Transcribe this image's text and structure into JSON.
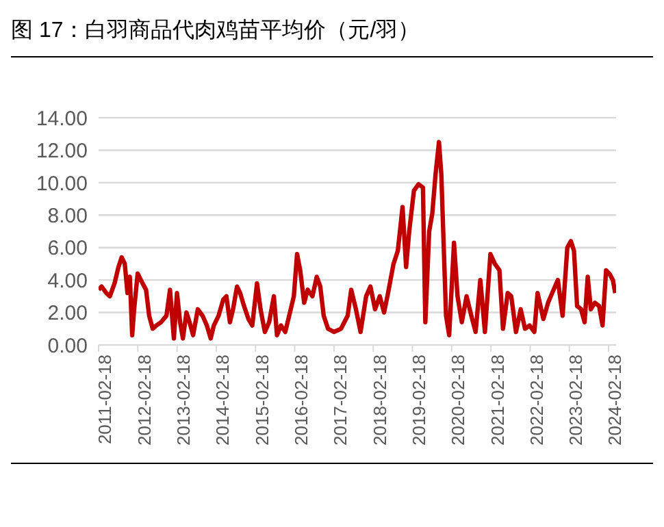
{
  "chart_data": {
    "type": "line",
    "title": "图 17：白羽商品代肉鸡苗平均价（元/羽）",
    "x": [
      "2011-02-18",
      "2011-03-18",
      "2011-05-01",
      "2011-06-03",
      "2011-07-17",
      "2011-08-22",
      "2011-09-21",
      "2011-10-20",
      "2011-11-14",
      "2011-12-06",
      "2011-12-28",
      "2012-01-15",
      "2012-02-17",
      "2012-04-02",
      "2012-05-05",
      "2012-06-03",
      "2012-07-06",
      "2012-08-08",
      "2012-09-21",
      "2012-11-11",
      "2012-12-14",
      "2013-01-19",
      "2013-02-17",
      "2013-03-18",
      "2013-04-13",
      "2013-05-16",
      "2013-06-14",
      "2013-07-17",
      "2013-08-30",
      "2013-10-13",
      "2013-11-22",
      "2013-12-28",
      "2014-01-26",
      "2014-03-11",
      "2014-04-24",
      "2014-05-23",
      "2014-06-25",
      "2014-07-24",
      "2014-08-30",
      "2014-09-28",
      "2014-11-03",
      "2014-12-14",
      "2015-01-19",
      "2015-03-04",
      "2015-04-06",
      "2015-05-16",
      "2015-06-25",
      "2015-08-08",
      "2015-09-06",
      "2015-10-13",
      "2015-11-22",
      "2016-01-05",
      "2016-02-10",
      "2016-03-11",
      "2016-04-09",
      "2016-05-16",
      "2016-06-18",
      "2016-08-01",
      "2016-09-10",
      "2016-10-13",
      "2016-11-14",
      "2016-12-24",
      "2017-02-17",
      "2017-04-24",
      "2017-06-25",
      "2017-07-28",
      "2017-09-10",
      "2017-10-23",
      "2017-12-14",
      "2018-01-23",
      "2018-03-07",
      "2018-04-20",
      "2018-05-30",
      "2018-07-06",
      "2018-08-26",
      "2018-10-05",
      "2018-11-18",
      "2018-12-21",
      "2019-01-19",
      "2019-03-04",
      "2019-04-16",
      "2019-05-27",
      "2019-06-18",
      "2019-07-24",
      "2019-08-22",
      "2019-09-21",
      "2019-10-23",
      "2019-11-14",
      "2019-12-28",
      "2020-01-26",
      "2020-03-11",
      "2020-04-13",
      "2020-05-23",
      "2020-07-06",
      "2020-08-19",
      "2020-09-28",
      "2020-11-11",
      "2020-12-24",
      "2021-02-13",
      "2021-03-26",
      "2021-05-08",
      "2021-06-10",
      "2021-07-24",
      "2021-08-26",
      "2021-10-09",
      "2021-11-22",
      "2022-01-01",
      "2022-02-13",
      "2022-03-29",
      "2022-04-28",
      "2022-06-21",
      "2022-08-04",
      "2022-09-24",
      "2022-11-03",
      "2022-12-17",
      "2023-01-30",
      "2023-03-04",
      "2023-04-02",
      "2023-05-01",
      "2023-06-07",
      "2023-07-10",
      "2023-08-08",
      "2023-09-06",
      "2023-10-13",
      "2023-11-22",
      "2023-12-24",
      "2024-01-26",
      "2024-02-25",
      "2024-03-29",
      "2024-04-20"
    ],
    "series": [
      {
        "color": "#c00000",
        "values": [
          3.4,
          3.6,
          3.2,
          3.0,
          3.8,
          4.8,
          5.4,
          5.0,
          3.2,
          4.2,
          0.6,
          2.2,
          4.4,
          3.8,
          3.4,
          1.8,
          1.0,
          1.2,
          1.4,
          1.8,
          3.4,
          0.4,
          3.2,
          1.4,
          0.4,
          2.0,
          1.4,
          0.6,
          2.2,
          1.8,
          1.2,
          0.4,
          1.2,
          1.8,
          2.8,
          3.0,
          1.4,
          2.2,
          3.6,
          3.2,
          2.4,
          1.6,
          1.2,
          3.8,
          2.2,
          0.8,
          1.4,
          3.0,
          0.6,
          1.2,
          0.8,
          2.0,
          3.0,
          5.6,
          4.6,
          2.6,
          3.4,
          3.0,
          4.2,
          3.6,
          1.8,
          1.0,
          0.8,
          1.0,
          1.8,
          3.4,
          2.2,
          0.8,
          3.0,
          3.6,
          2.2,
          3.0,
          2.0,
          3.2,
          5.0,
          5.8,
          8.5,
          4.8,
          7.0,
          9.5,
          9.9,
          9.7,
          1.4,
          7.0,
          8.1,
          10.5,
          12.5,
          10.5,
          1.8,
          0.6,
          6.3,
          3.0,
          1.4,
          3.0,
          1.8,
          0.8,
          4.0,
          0.8,
          5.6,
          5.0,
          4.6,
          1.0,
          3.2,
          3.0,
          0.8,
          2.2,
          1.0,
          1.2,
          0.8,
          3.2,
          1.6,
          2.6,
          3.4,
          4.0,
          1.8,
          6.0,
          6.4,
          5.8,
          2.4,
          2.2,
          1.4,
          4.2,
          2.2,
          2.6,
          2.4,
          1.2,
          4.6,
          4.4,
          4.0,
          3.2
        ]
      }
    ],
    "xlim": [
      "2011-02-18",
      "2024-04-28"
    ],
    "xticks": [
      "2011-02-18",
      "2012-02-18",
      "2013-02-18",
      "2014-02-18",
      "2015-02-18",
      "2016-02-18",
      "2017-02-18",
      "2018-02-18",
      "2019-02-18",
      "2020-02-18",
      "2021-02-18",
      "2022-02-18",
      "2023-02-18",
      "2024-02-18"
    ],
    "ylim": [
      0,
      14
    ],
    "yticks": [
      {
        "value": 0,
        "label": "0.00"
      },
      {
        "value": 2,
        "label": "2.00"
      },
      {
        "value": 4,
        "label": "4.00"
      },
      {
        "value": 6,
        "label": "6.00"
      },
      {
        "value": 8,
        "label": "8.00"
      },
      {
        "value": 10,
        "label": "10.00"
      },
      {
        "value": 12,
        "label": "12.00"
      },
      {
        "value": 14,
        "label": "14.00"
      }
    ],
    "grid": "y",
    "marker": "none",
    "line_style": "solid"
  }
}
